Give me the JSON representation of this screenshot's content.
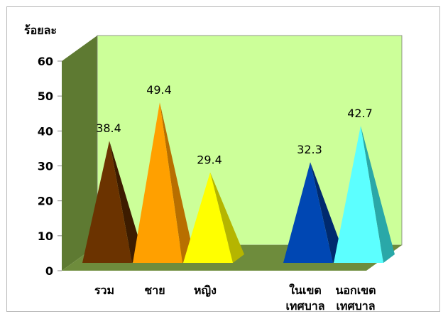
{
  "chart_data": {
    "type": "bar",
    "bar_shape": "pyramid-3d",
    "ylabel": "ร้อยละ",
    "ylim": [
      0,
      60
    ],
    "yticks": [
      0,
      10,
      20,
      30,
      40,
      50,
      60
    ],
    "grid": false,
    "legend": "none",
    "categories": [
      {
        "lines": [
          "รวม"
        ],
        "value": 38.4,
        "value_label": "38.4",
        "color": "#6b3300",
        "side": "#3d1c00"
      },
      {
        "lines": [
          "ชาย"
        ],
        "value": 49.4,
        "value_label": "49.4",
        "color": "#ffa000",
        "side": "#b86f00"
      },
      {
        "lines": [
          "หญิง"
        ],
        "value": 29.4,
        "value_label": "29.4",
        "color": "#ffff00",
        "side": "#b5b500"
      },
      {
        "lines": [
          "ในเขต",
          "เทศบาล"
        ],
        "value": 32.3,
        "value_label": "32.3",
        "color": "#0047b3",
        "side": "#002a6e"
      },
      {
        "lines": [
          "นอกเขต",
          "เทศบาล"
        ],
        "value": 42.7,
        "value_label": "42.7",
        "color": "#5cffff",
        "side": "#2aa8a8"
      }
    ],
    "colors": {
      "back_wall": "#ccff99",
      "side_wall": "#5e7a32",
      "floor": "#6e8c3c",
      "floor_front": "#56702e"
    }
  }
}
